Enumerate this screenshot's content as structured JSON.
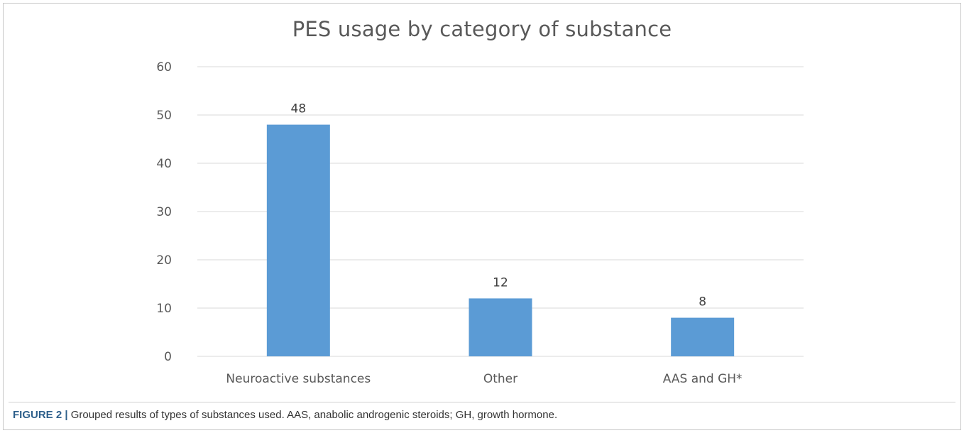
{
  "chart_data": {
    "type": "bar",
    "title": "PES usage by category of substance",
    "categories": [
      "Neuroactive substances",
      "Other",
      "AAS and GH*"
    ],
    "values": [
      48,
      12,
      8
    ],
    "data_labels": [
      "48",
      "12",
      "8"
    ],
    "xlabel": "",
    "ylabel": "",
    "ylim": [
      0,
      60
    ],
    "yticks": [
      0,
      10,
      20,
      30,
      40,
      50,
      60
    ],
    "grid": true,
    "legend": "none",
    "bar_color": "#5b9bd5",
    "grid_color": "#d9d9d9",
    "text_color": "#595959"
  },
  "caption": {
    "label": "FIGURE 2",
    "separator": "|",
    "text": "Grouped results of types of substances used. AAS, anabolic androgenic steroids; GH, growth hormone."
  }
}
